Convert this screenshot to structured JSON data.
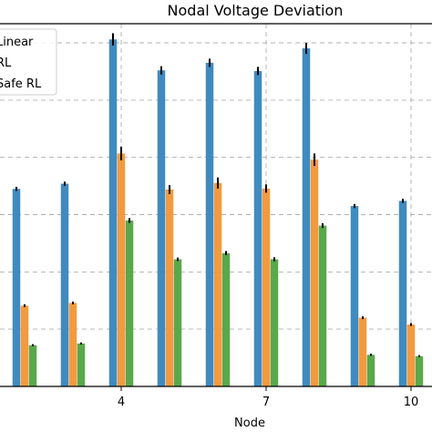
{
  "chart_data": {
    "type": "bar",
    "title": "Nodal Voltage Deviation",
    "xlabel": "Node",
    "ylabel": "",
    "x": [
      2,
      3,
      4,
      5,
      6,
      7,
      8,
      9,
      10
    ],
    "x_tick_labels": [
      "4",
      "7",
      "10"
    ],
    "x_tick_values": [
      4,
      7,
      10
    ],
    "xlim": [
      1.5,
      10.3
    ],
    "ylim": [
      0,
      1.0
    ],
    "grid": true,
    "legend_position": "top-left",
    "series": [
      {
        "name": "Linear",
        "color": "#3f8bc0",
        "values": [
          0.575,
          0.59,
          1.01,
          0.92,
          0.942,
          0.918,
          0.984,
          0.525,
          0.54
        ],
        "errors": [
          0.006,
          0.006,
          0.018,
          0.012,
          0.012,
          0.012,
          0.016,
          0.006,
          0.006
        ]
      },
      {
        "name": "RL",
        "color": "#f39a3f",
        "values": [
          0.235,
          0.243,
          0.678,
          0.573,
          0.592,
          0.576,
          0.66,
          0.2,
          0.18
        ],
        "errors": [
          0.004,
          0.004,
          0.02,
          0.013,
          0.016,
          0.012,
          0.018,
          0.004,
          0.004
        ]
      },
      {
        "name": "Safe RL",
        "color": "#59a84b",
        "values": [
          0.12,
          0.125,
          0.483,
          0.37,
          0.388,
          0.37,
          0.468,
          0.092,
          0.088
        ],
        "errors": [
          0.003,
          0.003,
          0.007,
          0.005,
          0.006,
          0.006,
          0.007,
          0.003,
          0.003
        ]
      }
    ]
  }
}
